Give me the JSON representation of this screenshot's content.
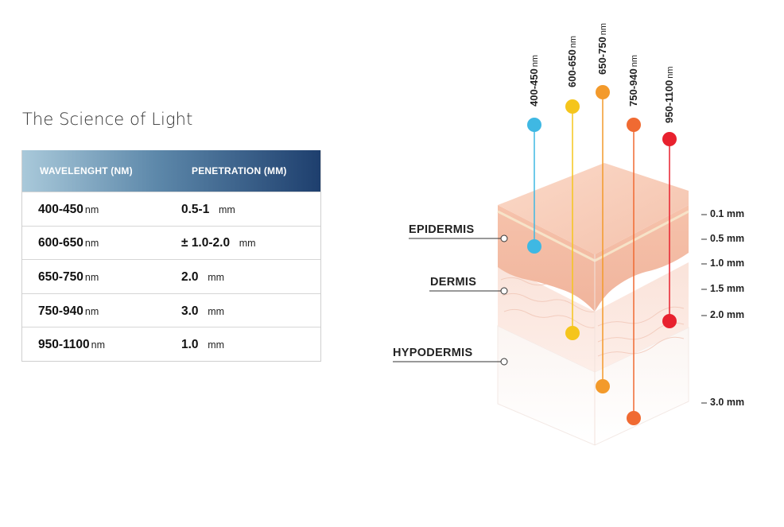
{
  "title": "The Science of Light",
  "table": {
    "headers": [
      "WAVELENGHT (NM)",
      "PENETRATION (MM)"
    ],
    "rows": [
      {
        "wavelength": "400-450",
        "wl_unit": "nm",
        "penetration": "0.5-1",
        "pen_unit": "mm"
      },
      {
        "wavelength": "600-650",
        "wl_unit": "nm",
        "penetration": "± 1.0-2.0",
        "pen_unit": "mm"
      },
      {
        "wavelength": "650-750",
        "wl_unit": "nm",
        "penetration": "2.0",
        "pen_unit": "mm"
      },
      {
        "wavelength": "750-940",
        "wl_unit": "nm",
        "penetration": "3.0",
        "pen_unit": "mm"
      },
      {
        "wavelength": "950-1100",
        "wl_unit": "nm",
        "penetration": "1.0",
        "pen_unit": "mm"
      }
    ]
  },
  "layers": {
    "epidermis": "EPIDERMIS",
    "dermis": "DERMIS",
    "hypodermis": "HYPODERMIS"
  },
  "depth_marks": [
    "0.1 mm",
    "0.5 mm",
    "1.0 mm",
    "1.5 mm",
    "2.0 mm",
    "3.0 mm"
  ],
  "wavelength_probes": [
    {
      "range": "400-450",
      "unit": "nm",
      "color": "#3fb8e3"
    },
    {
      "range": "600-650",
      "unit": "nm",
      "color": "#f5c51c"
    },
    {
      "range": "650-750",
      "unit": "nm",
      "color": "#f39a2b"
    },
    {
      "range": "750-940",
      "unit": "nm",
      "color": "#f06a32"
    },
    {
      "range": "950-1100",
      "unit": "nm",
      "color": "#e8212e"
    }
  ]
}
